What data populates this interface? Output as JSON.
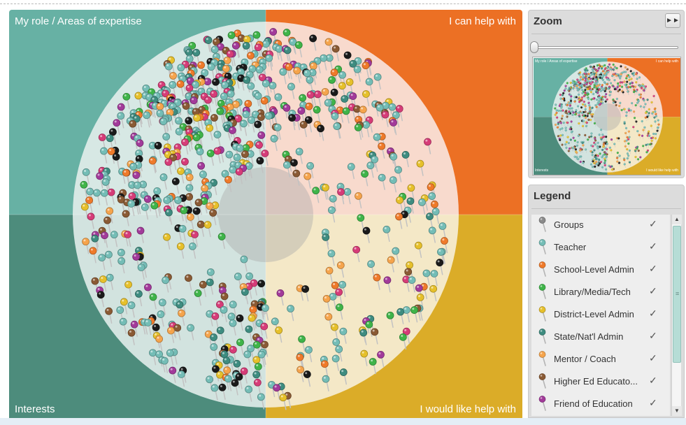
{
  "board": {
    "quadrants": {
      "top_left": "My role / Areas of expertise",
      "top_right": "I can help with",
      "bottom_left": "Interests",
      "bottom_right": "I would like help with"
    },
    "colors": {
      "top_left": "#67b1a4",
      "top_right": "#ec7024",
      "bottom_left": "#4d8c7c",
      "bottom_right": "#dbac28",
      "disc_top_left": "#d7e8e4",
      "disc_top_right": "#f8dacd",
      "disc_bottom_left": "#d2e3df",
      "disc_bottom_right": "#f4e8c7",
      "hub": "#a9a9a9"
    }
  },
  "zoom": {
    "title": "Zoom",
    "expand_icon": "fast-forward-icon",
    "level": 0,
    "minimap_labels": {
      "top_left": "My role / Areas of expertise",
      "top_right": "I can help with",
      "bottom_left": "Interests",
      "bottom_right": "I would like help with"
    }
  },
  "legend": {
    "title": "Legend",
    "check_mark": "✓",
    "items": [
      {
        "label": "Groups",
        "color": "#8a8a8a",
        "checked": true
      },
      {
        "label": "Teacher",
        "color": "#74bdb6",
        "checked": true
      },
      {
        "label": "School-Level Admin",
        "color": "#ef7a2a",
        "checked": true
      },
      {
        "label": "Library/Media/Tech",
        "color": "#3fb449",
        "checked": true
      },
      {
        "label": "District-Level Admin",
        "color": "#e6c02b",
        "checked": true
      },
      {
        "label": "State/Nat'l Admin",
        "color": "#3e8c80",
        "checked": true
      },
      {
        "label": "Mentor / Coach",
        "color": "#f5a44c",
        "checked": true
      },
      {
        "label": "Higher Ed Educato...",
        "color": "#8a5a34",
        "checked": true
      },
      {
        "label": "Friend of Education",
        "color": "#a23a9a",
        "checked": true
      }
    ]
  },
  "pin_palette": [
    "#74bdb6",
    "#74bdb6",
    "#74bdb6",
    "#74bdb6",
    "#74bdb6",
    "#3fb449",
    "#ef7a2a",
    "#e6c02b",
    "#f5a44c",
    "#d63c78",
    "#8a5a34",
    "#1a1a1a",
    "#a23a9a",
    "#3e8c80"
  ]
}
